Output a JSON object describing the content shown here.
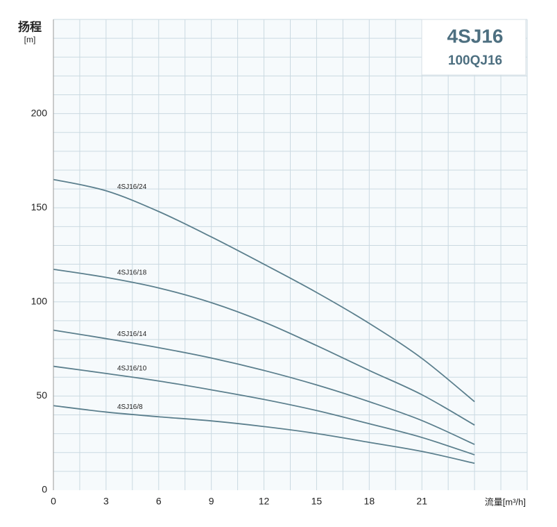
{
  "chart_data": {
    "type": "line",
    "badge": {
      "title": "4SJ16",
      "subtitle": "100QJ16"
    },
    "y_label": "扬程",
    "y_unit": "[m]",
    "x_label": "流量[m³/h]",
    "x": [
      0,
      3,
      6,
      9,
      12,
      15,
      18,
      21,
      24
    ],
    "xlim": [
      0,
      27
    ],
    "xticks": [
      0,
      3,
      6,
      9,
      12,
      15,
      18,
      21
    ],
    "ylim": [
      0,
      250
    ],
    "yticks": [
      0,
      50,
      100,
      150,
      200
    ],
    "grid": true,
    "x_grid_step": 1.5,
    "y_grid_step": 10,
    "series": [
      {
        "name": "4SJ16/24",
        "color": "#5b7f8d",
        "values": [
          165,
          159,
          148,
          134.5,
          120,
          105,
          88.6,
          70,
          47
        ]
      },
      {
        "name": "4SJ16/18",
        "color": "#5b7f8d",
        "values": [
          117.3,
          113,
          107.4,
          99.6,
          89.3,
          76.8,
          63.6,
          50.7,
          34.6
        ]
      },
      {
        "name": "4SJ16/14",
        "color": "#5b7f8d",
        "values": [
          85,
          80.5,
          75.7,
          70.2,
          63.6,
          55.9,
          47,
          37,
          24.3
        ]
      },
      {
        "name": "4SJ16/10",
        "color": "#5b7f8d",
        "values": [
          65.8,
          62,
          58,
          53.3,
          48.2,
          42.3,
          35.3,
          28,
          18.8
        ]
      },
      {
        "name": "4SJ16/8",
        "color": "#5b7f8d",
        "values": [
          44.9,
          41.5,
          39,
          36.8,
          33.8,
          30.1,
          25.4,
          20.6,
          14.3
        ]
      }
    ]
  }
}
